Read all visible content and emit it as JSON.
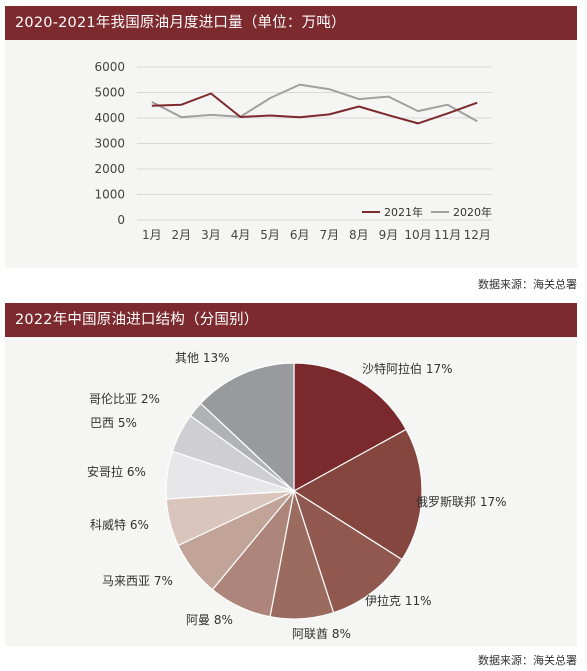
{
  "chart1": {
    "title": "2020-2021年我国原油月度进口量（单位：万吨）",
    "source": "数据来源：海关总署"
  },
  "chart2": {
    "title": "2022年中国原油进口结构（分国别）",
    "source": "数据来源：海关总署"
  },
  "colors": {
    "header": "#7c2a2e",
    "series_2021": "#7c2a2e",
    "series_2020": "#a0a0a0"
  },
  "chart_data": [
    {
      "type": "line",
      "title": "2020-2021年我国原油月度进口量（单位：万吨）",
      "x": [
        "1月",
        "2月",
        "3月",
        "4月",
        "5月",
        "6月",
        "7月",
        "8月",
        "9月",
        "10月",
        "11月",
        "12月"
      ],
      "ylim": [
        0,
        6000
      ],
      "yticks": [
        0,
        1000,
        2000,
        3000,
        4000,
        5000,
        6000
      ],
      "grid": true,
      "legend": "bottom-right",
      "series": [
        {
          "name": "2021年",
          "color": "#7c2a2e",
          "values": [
            4480,
            4520,
            4960,
            4040,
            4100,
            4030,
            4140,
            4450,
            4110,
            3790,
            4180,
            4600
          ]
        },
        {
          "name": "2020年",
          "color": "#a0a0a0",
          "values": [
            4630,
            4030,
            4120,
            4050,
            4780,
            5310,
            5130,
            4740,
            4840,
            4270,
            4520,
            3870
          ]
        }
      ]
    },
    {
      "type": "pie",
      "title": "2022年中国原油进口结构（分国别）",
      "slices": [
        {
          "label": "沙特阿拉伯 17%",
          "value": 17,
          "color": "#7a2a2c"
        },
        {
          "label": "俄罗斯联邦 17%",
          "value": 17,
          "color": "#85463f"
        },
        {
          "label": "伊拉克 11%",
          "value": 11,
          "color": "#90584f"
        },
        {
          "label": "阿联酋 8%",
          "value": 8,
          "color": "#9c6b60"
        },
        {
          "label": "阿曼 8%",
          "value": 8,
          "color": "#ad857a"
        },
        {
          "label": "马来西亚 7%",
          "value": 7,
          "color": "#c1a397"
        },
        {
          "label": "科威特 6%",
          "value": 6,
          "color": "#dac5bd"
        },
        {
          "label": "安哥拉 6%",
          "value": 6,
          "color": "#e7e7ea"
        },
        {
          "label": "巴西 5%",
          "value": 5,
          "color": "#cfcfd3"
        },
        {
          "label": "哥伦比亚 2%",
          "value": 2,
          "color": "#b1b2b6"
        },
        {
          "label": "其他 13%",
          "value": 13,
          "color": "#999a9e"
        }
      ]
    }
  ]
}
